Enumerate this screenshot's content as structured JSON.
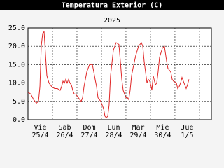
{
  "chart_data": {
    "type": "line",
    "title": "Temperatura Exterior (C)",
    "subtitle": "2025",
    "xlim": [
      0,
      179.7
    ],
    "xticks": [
      24,
      48,
      72,
      96,
      120,
      144,
      168
    ],
    "days": [
      {
        "value": 12,
        "name": "Vie",
        "date": "25/4"
      },
      {
        "value": 36,
        "name": "Sab",
        "date": "26/4"
      },
      {
        "value": 60,
        "name": "Dom",
        "date": "27/4"
      },
      {
        "value": 84,
        "name": "Lun",
        "date": "28/4"
      },
      {
        "value": 108,
        "name": "Mar",
        "date": "29/4"
      },
      {
        "value": 132,
        "name": "Mie",
        "date": "30/4"
      },
      {
        "value": 156,
        "name": "Jue",
        "date": "1/5"
      }
    ],
    "ylim": [
      0,
      25
    ],
    "yticks": [
      {
        "value": 0,
        "label": "0.0"
      },
      {
        "value": 5,
        "label": "5.0"
      },
      {
        "value": 10,
        "label": "10.0"
      },
      {
        "value": 15,
        "label": "15.0"
      },
      {
        "value": 20,
        "label": "20.0"
      },
      {
        "value": 25,
        "label": "25.0"
      }
    ],
    "grid": true,
    "series": [
      {
        "color": "#e02828",
        "x": [
          0,
          2.7,
          5.5,
          8.2,
          10.3,
          11.7,
          13,
          14.4,
          15.8,
          17.1,
          18.5,
          20.6,
          23.3,
          26.1,
          28.8,
          31.5,
          32.9,
          34.3,
          35.7,
          37,
          38.4,
          39.8,
          41.1,
          42.5,
          43.9,
          45.3,
          46.6,
          49.4,
          52.1,
          53.5,
          54.9,
          57.6,
          60.3,
          63.1,
          64.5,
          65.8,
          67.2,
          68.6,
          71.3,
          74.1,
          75.4,
          76.8,
          78.2,
          79.5,
          80.9,
          83.7,
          86.4,
          89.1,
          90.5,
          91.9,
          93.3,
          94.6,
          96,
          97.4,
          98.7,
          100.1,
          101.5,
          102.9,
          105.6,
          108.3,
          111.1,
          112.5,
          113.8,
          115.2,
          116.6,
          117.9,
          119.3,
          120.7,
          121.4,
          122.7,
          124.8,
          126.2,
          127.5,
          128.9,
          131.7,
          133.7,
          135.8,
          137.1,
          139.9,
          141.3,
          142.6,
          145.4,
          146.7,
          148.1,
          149.5,
          150.9,
          152.2,
          153.6,
          155,
          156.3,
          157.7
        ],
        "values": [
          7.5,
          7,
          5.5,
          4.5,
          5,
          9,
          20,
          23.5,
          24,
          18,
          12,
          10,
          9,
          8.5,
          8.5,
          8,
          9,
          10.5,
          10,
          11,
          10,
          11,
          10,
          9.5,
          8,
          7,
          7,
          6,
          5,
          6,
          9,
          13,
          15,
          15,
          13,
          11,
          9,
          6,
          5,
          3,
          1,
          0.5,
          1,
          4,
          12,
          19,
          21,
          20.5,
          16,
          11,
          8,
          7,
          6,
          6,
          5.5,
          8,
          12,
          14,
          17.5,
          20,
          21,
          20,
          16,
          13,
          10,
          11,
          10.5,
          9,
          8,
          12,
          9.5,
          10,
          13,
          17,
          19.5,
          20,
          16,
          14,
          13,
          11,
          10.5,
          10,
          8.5,
          9,
          10,
          11.5,
          10.5,
          9.5,
          8.5,
          9.5,
          11
        ]
      }
    ]
  }
}
